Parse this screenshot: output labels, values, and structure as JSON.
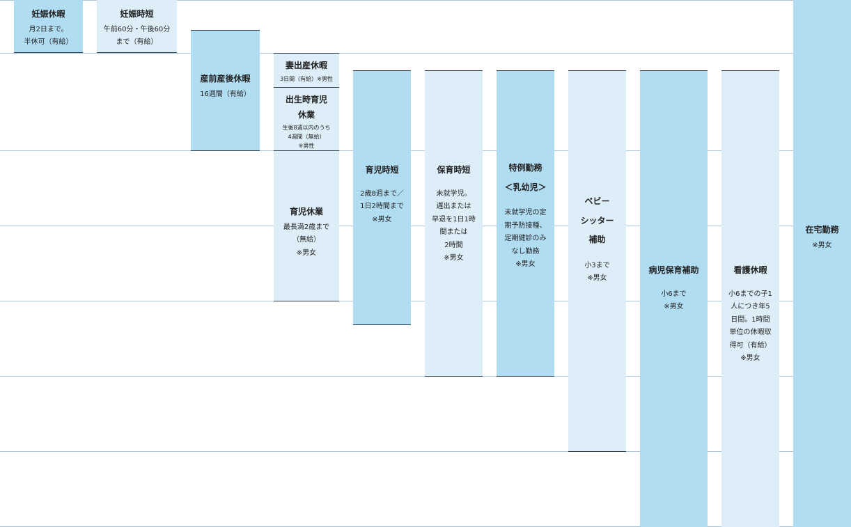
{
  "programs": {
    "ninshin_kyuka": {
      "title": "妊娠休暇",
      "desc": "月2日まで。\n半休可（有給）"
    },
    "ninshin_jitan": {
      "title": "妊娠時短",
      "desc": "午前60分・午後60分\nまで（有給）"
    },
    "sanzen_sango": {
      "title": "産前産後休暇",
      "desc": "16週間（有給）"
    },
    "tsuma_shussan": {
      "title": "妻出産休暇",
      "desc": "3日間（有給）※男性"
    },
    "shussei_ikuji": {
      "title": "出生時育児\n休業",
      "desc": "生後8週以内のうち\n4週間（無給）\n※男性"
    },
    "ikuji_kyugyo": {
      "title": "育児休業",
      "desc": "最長満2歳まで\n（無給）\n※男女"
    },
    "ikuji_jitan": {
      "title": "育児時短",
      "desc": "2歳8週まで／\n1日2時間まで\n※男女"
    },
    "hoiku_jitan": {
      "title": "保育時短",
      "desc": "未就学児。\n遅出または\n早退を1日1時\n間または\n2時間\n※男女"
    },
    "tokurei_kinmu": {
      "title": "特例勤務\n＜乳幼児＞",
      "desc": "未就学児の定\n期予防接種、\n定期健診のみ\nなし勤務\n※男女"
    },
    "babysitter": {
      "title": "ベビー\nシッター\n補助",
      "desc": "小3まで\n※男女"
    },
    "byoji_hoiku": {
      "title": "病児保育補助",
      "desc": "小6まで\n※男女"
    },
    "kango_kyuka": {
      "title": "看護休暇",
      "desc": "小6までの子1\n人につき年5\n日間。1時間\n単位の休暇取\n得可（有給）\n※男女"
    },
    "zaitaku_kinmu": {
      "title": "在宅勤務",
      "desc": "※男女"
    }
  },
  "colors": {
    "dark": "#b1ddf3",
    "light": "#ddeef8",
    "gridline": "#a9c7dc"
  }
}
